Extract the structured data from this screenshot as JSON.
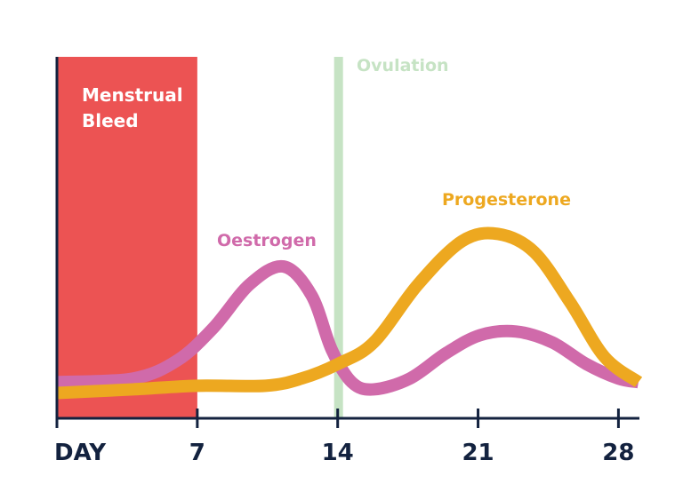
{
  "chart_data": {
    "type": "line",
    "title": "",
    "xlabel": "DAY",
    "ylabel": "",
    "xlim": [
      0,
      29
    ],
    "ylim": [
      0,
      1
    ],
    "y_unit": "relative hormone level (unlabeled)",
    "grid": false,
    "x_ticks": [
      {
        "value": 0,
        "label": "DAY"
      },
      {
        "value": 7,
        "label": "7"
      },
      {
        "value": 14,
        "label": "14"
      },
      {
        "value": 21,
        "label": "21"
      },
      {
        "value": 28,
        "label": "28"
      }
    ],
    "regions": [
      {
        "name": "Menstrual Bleed",
        "label_lines": [
          "Menstrual",
          "Bleed"
        ],
        "x_start": 0,
        "x_end": 7,
        "color": "#EC5353",
        "text_color": "#FFFFFF"
      }
    ],
    "markers": [
      {
        "name": "Ovulation",
        "label": "Ovulation",
        "x": 14,
        "color": "#C6E3C4"
      }
    ],
    "series": [
      {
        "name": "Oestrogen",
        "label": "Oestrogen",
        "color": "#D06AAA",
        "x": [
          0,
          3.8,
          6.0,
          7.8,
          9.6,
          11.3,
          12.7,
          13.7,
          14.7,
          15.8,
          17.6,
          19.4,
          21.1,
          22.9,
          24.7,
          26.4,
          28.0,
          29.0
        ],
        "values": [
          0.1,
          0.11,
          0.16,
          0.25,
          0.37,
          0.42,
          0.34,
          0.19,
          0.1,
          0.08,
          0.11,
          0.18,
          0.23,
          0.24,
          0.21,
          0.15,
          0.11,
          0.1
        ]
      },
      {
        "name": "Progesterone",
        "label": "Progesterone",
        "color": "#EDA820",
        "x": [
          0,
          3.8,
          7.0,
          10.4,
          12.2,
          14.0,
          15.8,
          18.0,
          20.2,
          22.0,
          23.8,
          25.6,
          27.3,
          29.0
        ],
        "values": [
          0.07,
          0.08,
          0.09,
          0.09,
          0.11,
          0.15,
          0.21,
          0.37,
          0.49,
          0.51,
          0.46,
          0.32,
          0.17,
          0.1
        ]
      }
    ],
    "colors": {
      "axis": "#13223F"
    }
  }
}
